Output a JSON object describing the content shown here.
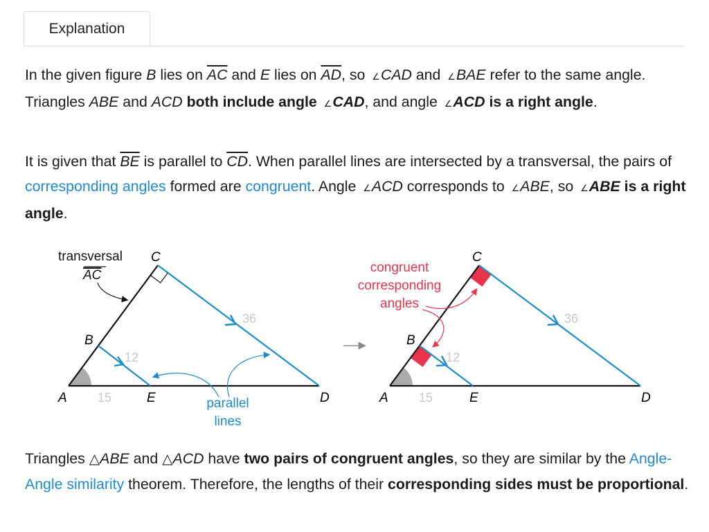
{
  "tab": {
    "label": "Explanation"
  },
  "paragraphs": [
    [
      {
        "t": "In the given figure "
      },
      {
        "t": "B",
        "s": "i"
      },
      {
        "t": " lies on "
      },
      {
        "t": "AC",
        "s": "i o"
      },
      {
        "t": " and "
      },
      {
        "t": "E",
        "s": "i"
      },
      {
        "t": " lies on "
      },
      {
        "t": "AD",
        "s": "i o"
      },
      {
        "t": ", so "
      },
      {
        "t": "∠",
        "s": "ang"
      },
      {
        "t": "CAD",
        "s": "i"
      },
      {
        "t": " and "
      },
      {
        "t": "∠",
        "s": "ang"
      },
      {
        "t": "BAE",
        "s": "i"
      },
      {
        "t": " refer to the same angle. Triangles "
      },
      {
        "t": "ABE",
        "s": "i"
      },
      {
        "t": " and "
      },
      {
        "t": "ACD",
        "s": "i"
      },
      {
        "t": " "
      },
      {
        "t": "both include angle ",
        "s": "b"
      },
      {
        "t": "∠",
        "s": "ang"
      },
      {
        "t": "CAD",
        "s": "b i"
      },
      {
        "t": ",  and angle "
      },
      {
        "t": "∠",
        "s": "ang"
      },
      {
        "t": "ACD",
        "s": "b i"
      },
      {
        "t": " is a right angle",
        "s": "b"
      },
      {
        "t": "."
      }
    ],
    [
      {
        "t": "It is given that "
      },
      {
        "t": "BE",
        "s": "i o"
      },
      {
        "t": " is parallel to "
      },
      {
        "t": "CD",
        "s": "i o"
      },
      {
        "t": ". When parallel lines are intersected by a transversal, the pairs of "
      },
      {
        "t": "corresponding angles",
        "s": "link"
      },
      {
        "t": " formed are "
      },
      {
        "t": "congruent",
        "s": "link"
      },
      {
        "t": ".  Angle "
      },
      {
        "t": "∠",
        "s": "ang"
      },
      {
        "t": "ACD",
        "s": "i"
      },
      {
        "t": " corresponds to "
      },
      {
        "t": "∠",
        "s": "ang"
      },
      {
        "t": "ABE",
        "s": "i"
      },
      {
        "t": ", so "
      },
      {
        "t": "∠",
        "s": "ang"
      },
      {
        "t": "ABE",
        "s": "b i"
      },
      {
        "t": " is a right angle",
        "s": "b"
      },
      {
        "t": "."
      }
    ],
    [
      {
        "t": "Triangles "
      },
      {
        "t": "△",
        "s": "tri"
      },
      {
        "t": "ABE",
        "s": "i"
      },
      {
        "t": " and "
      },
      {
        "t": "△",
        "s": "tri"
      },
      {
        "t": "ACD",
        "s": "i"
      },
      {
        "t": " have "
      },
      {
        "t": "two pairs of congruent angles",
        "s": "b"
      },
      {
        "t": ", so they are similar by the "
      },
      {
        "t": "Angle-Angle similarity",
        "s": "link"
      },
      {
        "t": " theorem. Therefore, the lengths of their "
      },
      {
        "t": "corresponding sides must be proportional",
        "s": "b"
      },
      {
        "t": "."
      }
    ]
  ],
  "figure": {
    "left": {
      "points": {
        "A": "A",
        "B": "B",
        "C": "C",
        "D": "D",
        "E": "E"
      },
      "transversal_label": "transversal",
      "transversal_segment": "AC",
      "parallel_label_1": "parallel",
      "parallel_label_2": "lines",
      "len_AE": "15",
      "len_BE": "12",
      "len_CD": "36"
    },
    "right": {
      "points": {
        "A": "A",
        "B": "B",
        "C": "C",
        "D": "D",
        "E": "E"
      },
      "congruent_label_1": "congruent",
      "congruent_label_2": "corresponding",
      "congruent_label_3": "angles",
      "len_AE": "15",
      "len_BE": "12",
      "len_CD": "36"
    },
    "colors": {
      "parallel": "#1a8ccc",
      "congruent": "#e8344a",
      "length": "#c8c8c8",
      "angle_fill": "#aaaaaa"
    }
  }
}
